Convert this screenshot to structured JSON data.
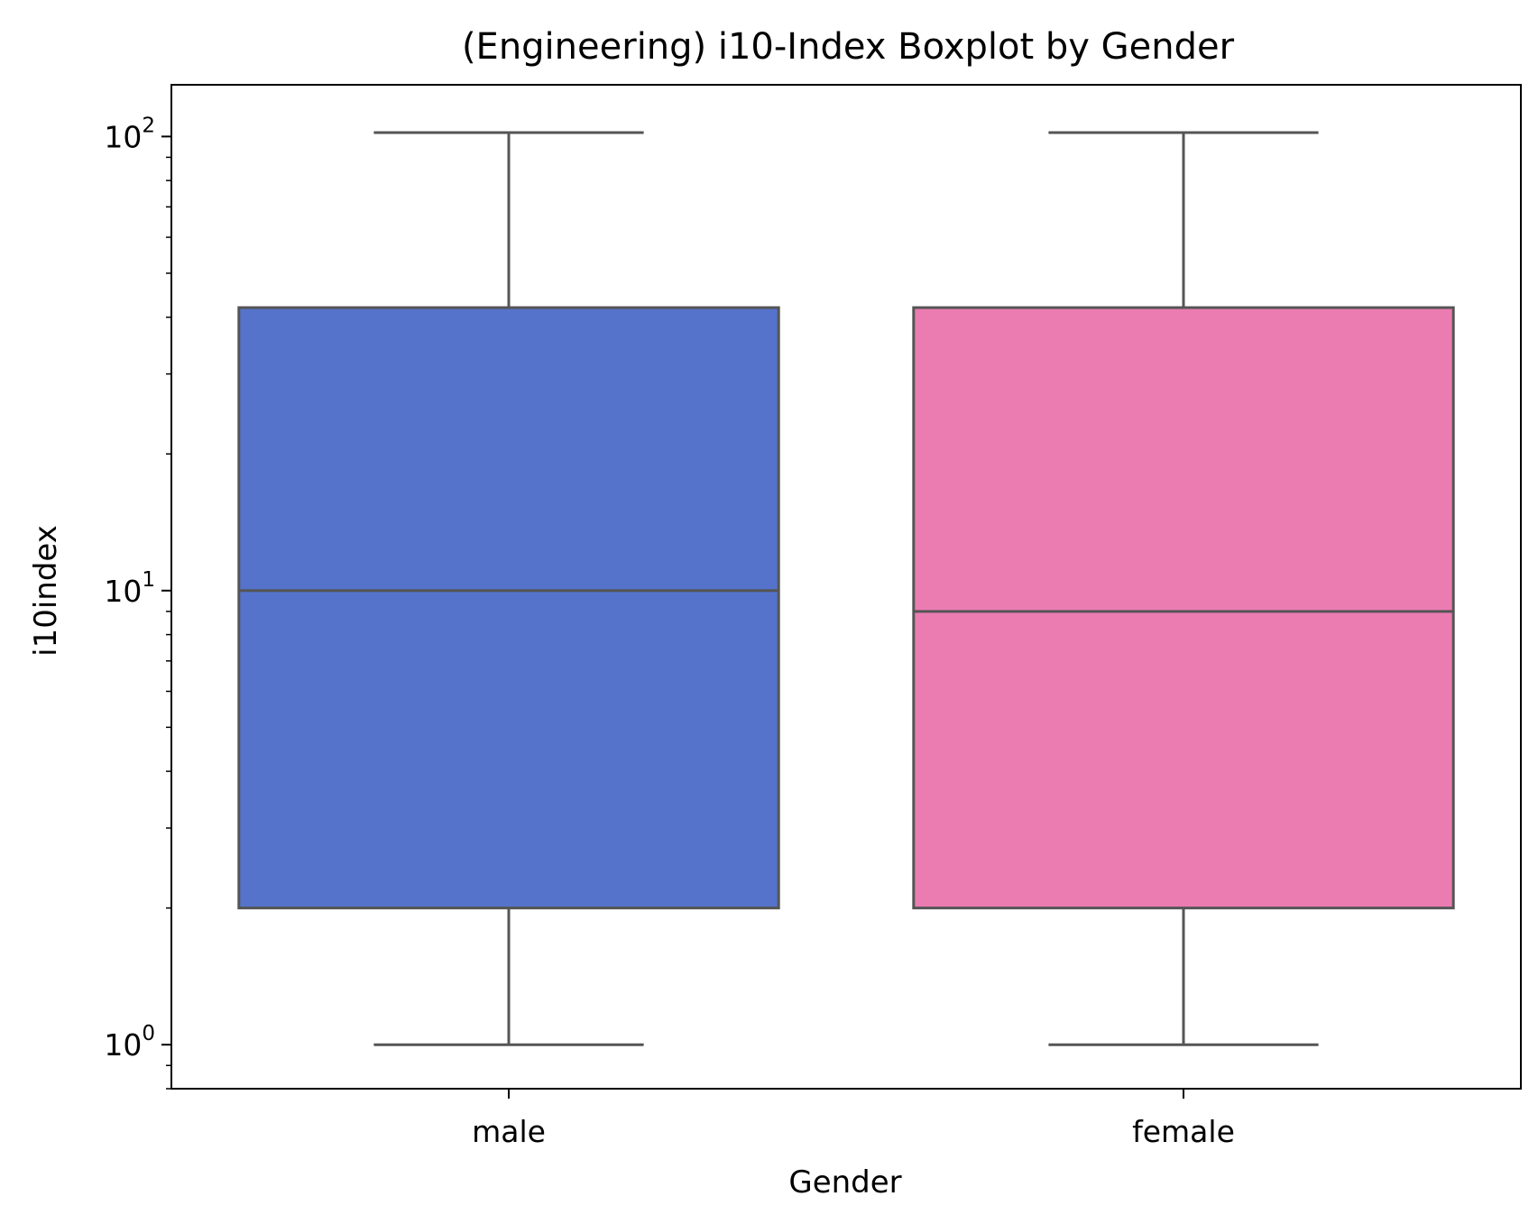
{
  "chart_data": {
    "type": "boxplot",
    "title": "(Engineering) i10-Index Boxplot by Gender",
    "xlabel": "Gender",
    "ylabel": "i10index",
    "yscale": "log",
    "ylim": [
      0.8,
      130
    ],
    "categories": [
      "male",
      "female"
    ],
    "y_ticks": [
      {
        "value": 1,
        "base": "10",
        "exp": "0"
      },
      {
        "value": 10,
        "base": "10",
        "exp": "1"
      },
      {
        "value": 100,
        "base": "10",
        "exp": "2"
      }
    ],
    "boxes": [
      {
        "category": "male",
        "whisker_low": 1,
        "q1": 2,
        "median": 10,
        "q3": 42,
        "whisker_high": 102,
        "color": "#5573CB"
      },
      {
        "category": "female",
        "whisker_low": 1,
        "q1": 2,
        "median": 9,
        "q3": 42,
        "whisker_high": 102,
        "color": "#EB7CB2"
      }
    ],
    "line_color": "#555555",
    "grid": false,
    "legend": "none"
  }
}
